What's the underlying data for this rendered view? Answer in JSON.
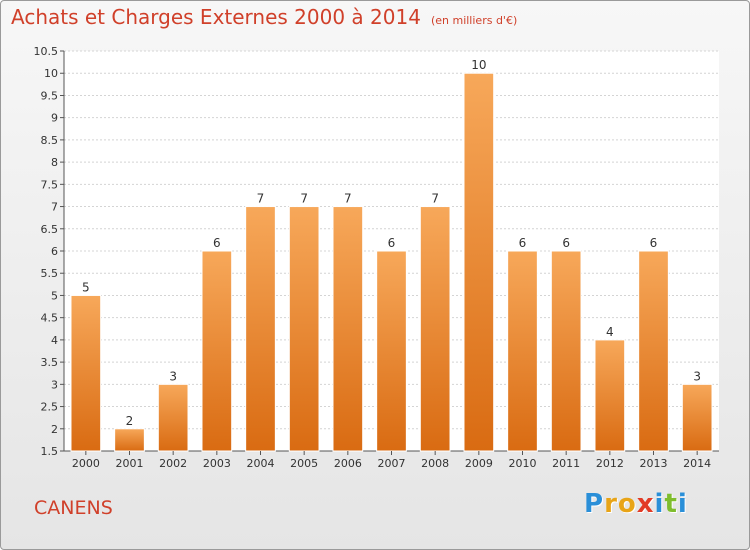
{
  "chart_data": {
    "type": "bar",
    "title": "Achats et Charges Externes 2000 à 2014",
    "subtitle": "(en milliers d'€)",
    "categories": [
      "2000",
      "2001",
      "2002",
      "2003",
      "2004",
      "2005",
      "2006",
      "2007",
      "2008",
      "2009",
      "2010",
      "2011",
      "2012",
      "2013",
      "2014"
    ],
    "values": [
      5,
      2,
      3,
      6,
      7,
      7,
      7,
      6,
      7,
      10,
      6,
      6,
      4,
      6,
      3
    ],
    "ylim": [
      1.5,
      10.5
    ],
    "yticks": [
      "1.5",
      "2",
      "2.5",
      "3",
      "3.5",
      "4",
      "4.5",
      "5",
      "5.5",
      "6",
      "6.5",
      "7",
      "7.5",
      "8",
      "8.5",
      "9",
      "9.5",
      "10",
      "10.5"
    ],
    "grid": true,
    "bar_color_top": "#f7a85a",
    "bar_color_bottom": "#d96b12"
  },
  "place_name": "CANENS",
  "logo": {
    "letters": [
      "P",
      "r",
      "o",
      "x",
      "i",
      "t",
      "i"
    ],
    "colors": [
      "#2a8fd8",
      "#e8a417",
      "#e8a417",
      "#e23b26",
      "#2a8fd8",
      "#7fbd2d",
      "#2a8fd8"
    ]
  }
}
